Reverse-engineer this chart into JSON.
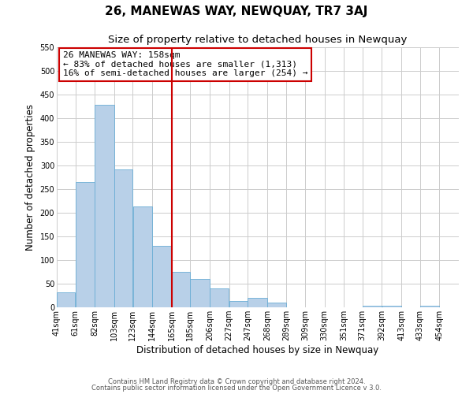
{
  "title": "26, MANEWAS WAY, NEWQUAY, TR7 3AJ",
  "subtitle": "Size of property relative to detached houses in Newquay",
  "xlabel": "Distribution of detached houses by size in Newquay",
  "ylabel": "Number of detached properties",
  "bar_left_edges": [
    41,
    61,
    82,
    103,
    123,
    144,
    165,
    185,
    206,
    227,
    247,
    268,
    289,
    309,
    330,
    351,
    371,
    392,
    413,
    433
  ],
  "bar_widths": [
    20,
    21,
    21,
    20,
    21,
    21,
    20,
    21,
    21,
    20,
    21,
    21,
    20,
    21,
    21,
    20,
    21,
    21,
    20,
    21
  ],
  "bar_heights": [
    32,
    265,
    428,
    291,
    213,
    130,
    75,
    60,
    40,
    14,
    20,
    10,
    0,
    0,
    0,
    0,
    3,
    3,
    0,
    3
  ],
  "bar_color": "#b8d0e8",
  "bar_edgecolor": "#6aadd5",
  "vline_x": 165,
  "vline_color": "#cc0000",
  "annotation_title": "26 MANEWAS WAY: 158sqm",
  "annotation_line1": "← 83% of detached houses are smaller (1,313)",
  "annotation_line2": "16% of semi-detached houses are larger (254) →",
  "annotation_box_edgecolor": "#cc0000",
  "ylim": [
    0,
    550
  ],
  "yticks": [
    0,
    50,
    100,
    150,
    200,
    250,
    300,
    350,
    400,
    450,
    500,
    550
  ],
  "xtick_labels": [
    "41sqm",
    "61sqm",
    "82sqm",
    "103sqm",
    "123sqm",
    "144sqm",
    "165sqm",
    "185sqm",
    "206sqm",
    "227sqm",
    "247sqm",
    "268sqm",
    "289sqm",
    "309sqm",
    "330sqm",
    "351sqm",
    "371sqm",
    "392sqm",
    "413sqm",
    "433sqm",
    "454sqm"
  ],
  "xtick_positions": [
    41,
    61,
    82,
    103,
    123,
    144,
    165,
    185,
    206,
    227,
    247,
    268,
    289,
    309,
    330,
    351,
    371,
    392,
    413,
    433,
    454
  ],
  "footer1": "Contains HM Land Registry data © Crown copyright and database right 2024.",
  "footer2": "Contains public sector information licensed under the Open Government Licence v 3.0.",
  "background_color": "#ffffff",
  "grid_color": "#cccccc",
  "title_fontsize": 11,
  "subtitle_fontsize": 9.5,
  "axis_label_fontsize": 8.5,
  "tick_fontsize": 7,
  "annotation_fontsize": 8,
  "footer_fontsize": 6
}
